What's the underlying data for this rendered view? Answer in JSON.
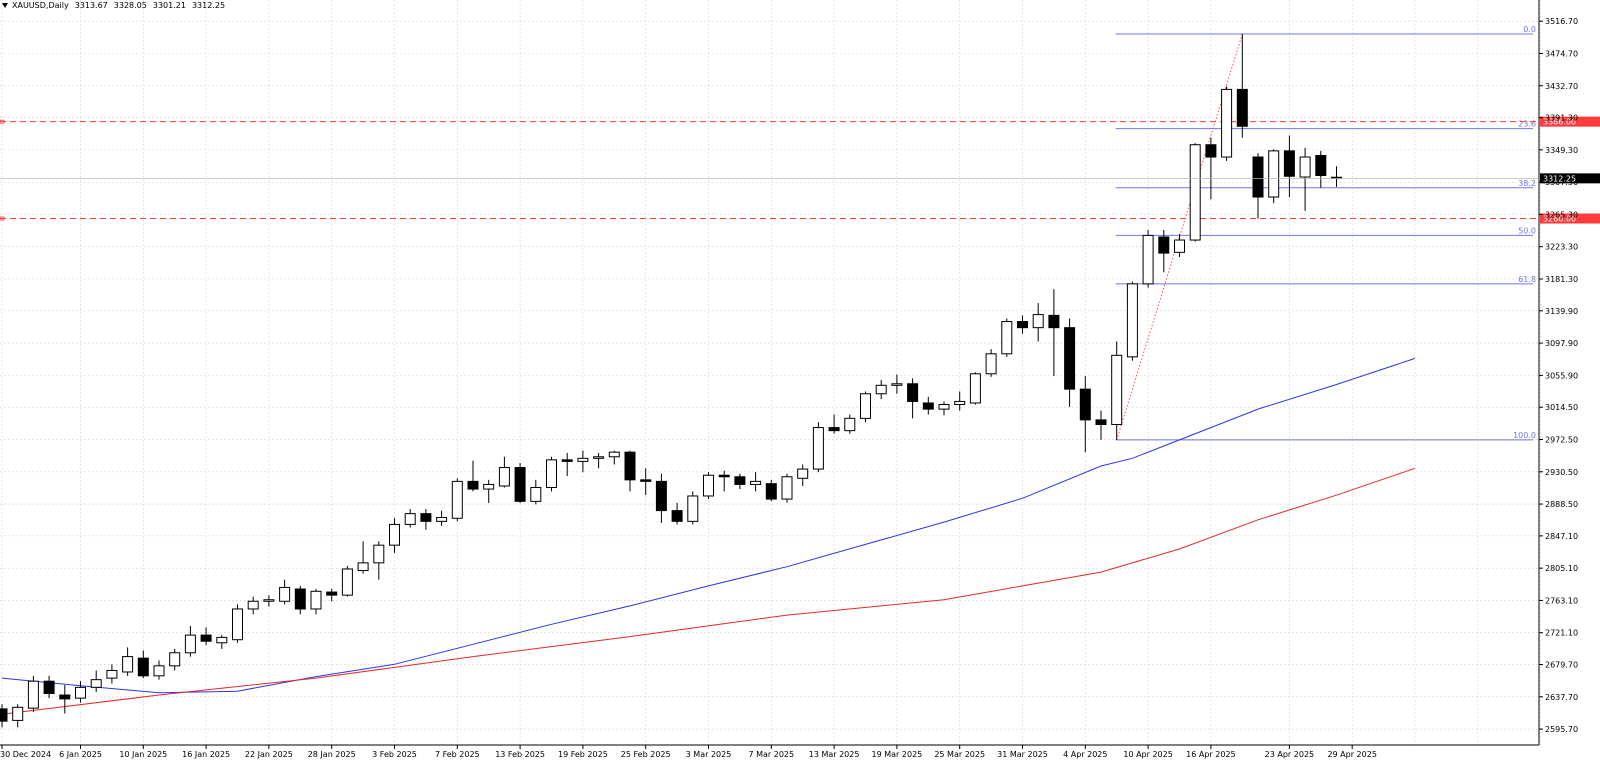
{
  "header": {
    "symbol_label": "XAUUSD,Daily",
    "ohlc": [
      "3313.67",
      "3328.05",
      "3301.21",
      "3312.25"
    ]
  },
  "colors": {
    "bull_body": "#ffffff",
    "bear_body": "#000000",
    "ma_fast": "#2b35e6",
    "ma_slow": "#e02b2b",
    "fib": "#6f76e8",
    "hline": "#ff3b3b",
    "grid": "#c8c8c8",
    "current_price_bg": "#000000"
  },
  "chart_data": {
    "type": "candlestick",
    "ylim": [
      2575,
      3530
    ],
    "y_ticks": [
      "3516.70",
      "3474.70",
      "3432.70",
      "3391.30",
      "3349.30",
      "3307.30",
      "3265.30",
      "3223.30",
      "3181.30",
      "3139.90",
      "3097.90",
      "3055.90",
      "3014.50",
      "2972.50",
      "2930.50",
      "2888.50",
      "2847.10",
      "2805.10",
      "2763.10",
      "2721.10",
      "2679.70",
      "2637.70",
      "2595.70"
    ],
    "x_labels": [
      {
        "label": "30 Dec 2024",
        "index": 0
      },
      {
        "label": "6 Jan 2025",
        "index": 5
      },
      {
        "label": "10 Jan 2025",
        "index": 9
      },
      {
        "label": "16 Jan 2025",
        "index": 13
      },
      {
        "label": "22 Jan 2025",
        "index": 17
      },
      {
        "label": "28 Jan 2025",
        "index": 21
      },
      {
        "label": "3 Feb 2025",
        "index": 25
      },
      {
        "label": "7 Feb 2025",
        "index": 29
      },
      {
        "label": "13 Feb 2025",
        "index": 33
      },
      {
        "label": "19 Feb 2025",
        "index": 37
      },
      {
        "label": "25 Feb 2025",
        "index": 41
      },
      {
        "label": "3 Mar 2025",
        "index": 45
      },
      {
        "label": "7 Mar 2025",
        "index": 49
      },
      {
        "label": "13 Mar 2025",
        "index": 53
      },
      {
        "label": "19 Mar 2025",
        "index": 57
      },
      {
        "label": "25 Mar 2025",
        "index": 61
      },
      {
        "label": "31 Mar 2025",
        "index": 65
      },
      {
        "label": "4 Apr 2025",
        "index": 69
      },
      {
        "label": "10 Apr 2025",
        "index": 73
      },
      {
        "label": "16 Apr 2025",
        "index": 77
      },
      {
        "label": "23 Apr 2025",
        "index": 82
      },
      {
        "label": "29 Apr 2025",
        "index": 86
      }
    ],
    "candles": [
      [
        2622,
        2628,
        2598,
        2606
      ],
      [
        2607,
        2628,
        2598,
        2624
      ],
      [
        2623,
        2665,
        2618,
        2658
      ],
      [
        2658,
        2665,
        2636,
        2642
      ],
      [
        2640,
        2653,
        2616,
        2635
      ],
      [
        2636,
        2658,
        2630,
        2650
      ],
      [
        2650,
        2672,
        2644,
        2660
      ],
      [
        2662,
        2680,
        2655,
        2672
      ],
      [
        2670,
        2702,
        2665,
        2690
      ],
      [
        2688,
        2698,
        2662,
        2665
      ],
      [
        2665,
        2685,
        2660,
        2678
      ],
      [
        2678,
        2700,
        2672,
        2695
      ],
      [
        2695,
        2730,
        2690,
        2718
      ],
      [
        2718,
        2728,
        2705,
        2710
      ],
      [
        2708,
        2718,
        2700,
        2715
      ],
      [
        2712,
        2758,
        2708,
        2752
      ],
      [
        2752,
        2768,
        2745,
        2762
      ],
      [
        2762,
        2770,
        2755,
        2764
      ],
      [
        2762,
        2790,
        2758,
        2780
      ],
      [
        2778,
        2782,
        2745,
        2752
      ],
      [
        2752,
        2778,
        2745,
        2775
      ],
      [
        2774,
        2778,
        2762,
        2770
      ],
      [
        2770,
        2808,
        2768,
        2804
      ],
      [
        2802,
        2840,
        2798,
        2812
      ],
      [
        2812,
        2840,
        2790,
        2835
      ],
      [
        2835,
        2870,
        2825,
        2862
      ],
      [
        2862,
        2882,
        2858,
        2876
      ],
      [
        2876,
        2882,
        2855,
        2866
      ],
      [
        2866,
        2880,
        2860,
        2871
      ],
      [
        2870,
        2922,
        2866,
        2918
      ],
      [
        2918,
        2945,
        2905,
        2908
      ],
      [
        2908,
        2920,
        2890,
        2914
      ],
      [
        2912,
        2950,
        2910,
        2936
      ],
      [
        2936,
        2942,
        2890,
        2892
      ],
      [
        2892,
        2920,
        2888,
        2910
      ],
      [
        2910,
        2950,
        2905,
        2946
      ],
      [
        2946,
        2955,
        2925,
        2944
      ],
      [
        2944,
        2958,
        2930,
        2948
      ],
      [
        2948,
        2955,
        2935,
        2950
      ],
      [
        2950,
        2958,
        2940,
        2956
      ],
      [
        2956,
        2958,
        2905,
        2920
      ],
      [
        2920,
        2935,
        2900,
        2918
      ],
      [
        2918,
        2928,
        2864,
        2880
      ],
      [
        2880,
        2890,
        2862,
        2866
      ],
      [
        2866,
        2905,
        2862,
        2899
      ],
      [
        2899,
        2930,
        2895,
        2926
      ],
      [
        2926,
        2932,
        2905,
        2924
      ],
      [
        2924,
        2928,
        2908,
        2914
      ],
      [
        2914,
        2930,
        2905,
        2918
      ],
      [
        2915,
        2920,
        2892,
        2895
      ],
      [
        2895,
        2928,
        2890,
        2924
      ],
      [
        2922,
        2940,
        2912,
        2934
      ],
      [
        2934,
        2995,
        2930,
        2988
      ],
      [
        2988,
        3005,
        2980,
        2984
      ],
      [
        2984,
        3005,
        2980,
        3000
      ],
      [
        3000,
        3035,
        2995,
        3032
      ],
      [
        3032,
        3050,
        3025,
        3043
      ],
      [
        3043,
        3057,
        3032,
        3045
      ],
      [
        3045,
        3052,
        3000,
        3022
      ],
      [
        3020,
        3028,
        3005,
        3012
      ],
      [
        3012,
        3022,
        3004,
        3018
      ],
      [
        3018,
        3035,
        3010,
        3022
      ],
      [
        3020,
        3060,
        3018,
        3058
      ],
      [
        3058,
        3090,
        3054,
        3084
      ],
      [
        3084,
        3130,
        3080,
        3126
      ],
      [
        3126,
        3134,
        3110,
        3118
      ],
      [
        3118,
        3150,
        3100,
        3135
      ],
      [
        3134,
        3168,
        3055,
        3118
      ],
      [
        3118,
        3130,
        3015,
        3038
      ],
      [
        3038,
        3055,
        2956,
        2998
      ],
      [
        2998,
        3010,
        2972,
        2992
      ],
      [
        2992,
        3100,
        2972,
        3082
      ],
      [
        3080,
        3178,
        3075,
        3175
      ],
      [
        3175,
        3245,
        3170,
        3238
      ],
      [
        3236,
        3245,
        3190,
        3215
      ],
      [
        3216,
        3240,
        3210,
        3232
      ],
      [
        3232,
        3358,
        3230,
        3356
      ],
      [
        3356,
        3365,
        3285,
        3340
      ],
      [
        3340,
        3432,
        3335,
        3428
      ],
      [
        3428,
        3500,
        3365,
        3380
      ],
      [
        3340,
        3345,
        3260,
        3288
      ],
      [
        3288,
        3350,
        3280,
        3348
      ],
      [
        3348,
        3368,
        3288,
        3315
      ],
      [
        3314,
        3352,
        3270,
        3340
      ],
      [
        3342,
        3348,
        3300,
        3316
      ],
      [
        3313.67,
        3328.05,
        3301.21,
        3312.25
      ]
    ],
    "ma_fast": [
      [
        0,
        2662
      ],
      [
        5,
        2652
      ],
      [
        10,
        2643
      ],
      [
        15,
        2645
      ],
      [
        20,
        2664
      ],
      [
        25,
        2680
      ],
      [
        30,
        2706
      ],
      [
        35,
        2732
      ],
      [
        40,
        2756
      ],
      [
        45,
        2782
      ],
      [
        50,
        2807
      ],
      [
        55,
        2836
      ],
      [
        60,
        2865
      ],
      [
        65,
        2896
      ],
      [
        70,
        2938
      ],
      [
        72,
        2948
      ],
      [
        75,
        2972
      ],
      [
        80,
        3012
      ],
      [
        85,
        3044
      ],
      [
        90,
        3078
      ]
    ],
    "ma_slow": [
      [
        0,
        2615
      ],
      [
        10,
        2640
      ],
      [
        20,
        2662
      ],
      [
        30,
        2690
      ],
      [
        40,
        2716
      ],
      [
        50,
        2744
      ],
      [
        60,
        2764
      ],
      [
        65,
        2782
      ],
      [
        70,
        2800
      ],
      [
        75,
        2830
      ],
      [
        80,
        2868
      ],
      [
        85,
        2900
      ],
      [
        90,
        2935
      ]
    ],
    "fib_levels": [
      {
        "label": "0.0",
        "price": 3500
      },
      {
        "label": "23.6",
        "price": 3377
      },
      {
        "label": "38.2",
        "price": 3300
      },
      {
        "label": "50.0",
        "price": 3238
      },
      {
        "label": "61.8",
        "price": 3175
      },
      {
        "label": "100.0",
        "price": 2972
      }
    ],
    "fib_anchor": {
      "from_index": 71,
      "from_price": 2972,
      "to_index": 79,
      "to_price": 3500
    },
    "fib_start_index": 71,
    "fib_end_index": 98,
    "hlines": [
      {
        "price": 3386.0,
        "label": "3386.00"
      },
      {
        "price": 3260.0,
        "label": "3260.00"
      }
    ],
    "current_price": {
      "price": 3312.25,
      "label": "3312.25"
    }
  }
}
